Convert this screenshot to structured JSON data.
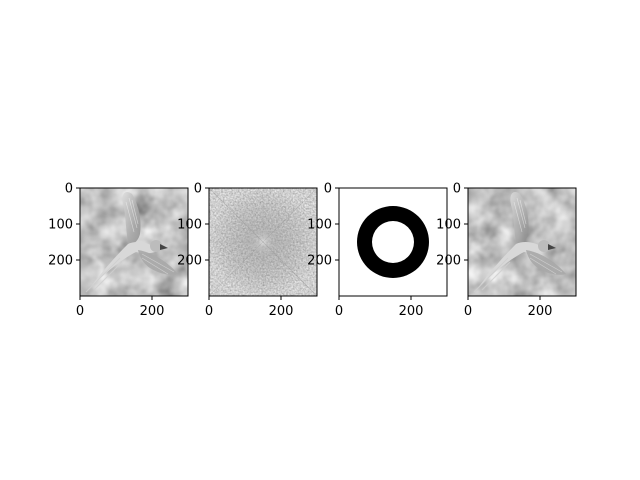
{
  "figure": {
    "panels": [
      {
        "id": "original-image",
        "content": "grayscale-photo",
        "subject": "parrot-in-flight",
        "x_ticks": [
          "0",
          "200"
        ],
        "y_ticks": [
          "0",
          "100",
          "200"
        ]
      },
      {
        "id": "fft-magnitude-spectrum",
        "content": "frequency-spectrum",
        "x_ticks": [
          "0",
          "200"
        ],
        "y_ticks": [
          "0",
          "100",
          "200"
        ]
      },
      {
        "id": "ring-mask",
        "content": "annulus-mask",
        "x_ticks": [
          "0",
          "200"
        ],
        "y_ticks": [
          "0",
          "100",
          "200"
        ]
      },
      {
        "id": "filtered-image",
        "content": "grayscale-photo",
        "subject": "parrot-in-flight",
        "x_ticks": [
          "0",
          "200"
        ],
        "y_ticks": [
          "0",
          "100",
          "200"
        ]
      }
    ],
    "mask_colors": {
      "ring": "#000000",
      "background": "#ffffff"
    }
  }
}
